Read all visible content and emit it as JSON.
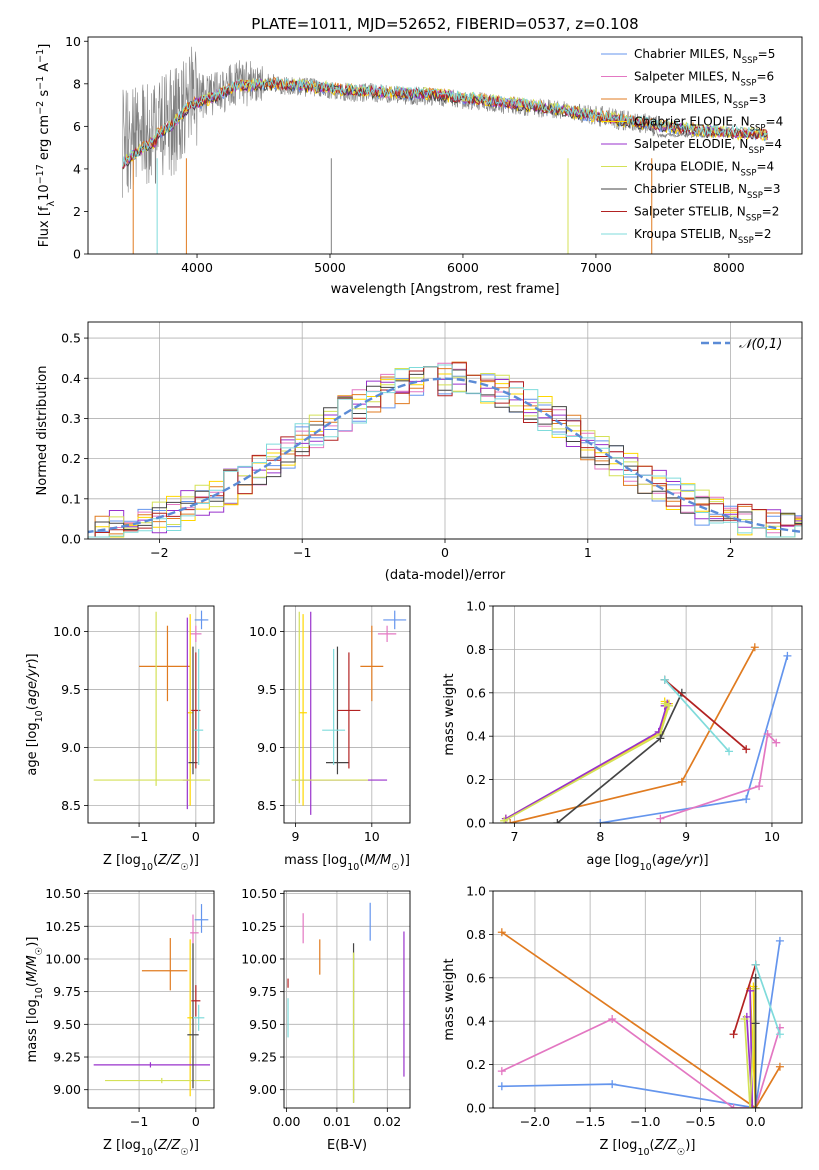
{
  "figure_title": "PLATE=1011, MJD=52652, FIBERID=0537, z=0.108",
  "series_colors": {
    "Chabrier MILES": "#6495ed",
    "Salpeter MILES": "#e377c2",
    "Kroupa MILES": "#e07b20",
    "Chabrier ELODIE": "#ffd700",
    "Salpeter ELODIE": "#9932cc",
    "Kroupa ELODIE": "#d4e157",
    "Chabrier STELIB": "#444444",
    "Salpeter STELIB": "#b22222",
    "Kroupa STELIB": "#7fdbdb"
  },
  "chart_data": [
    {
      "id": "spectrum",
      "type": "line",
      "title": "PLATE=1011, MJD=52652, FIBERID=0537, z=0.108",
      "xlabel": "wavelength [Angstrom, rest frame]",
      "ylabel": "Flux [f_λ 10^-17 erg cm^-2 s^-1 A^-1]",
      "xlim": [
        3180,
        8550
      ],
      "ylim": [
        0,
        10.2
      ],
      "xticks": [
        4000,
        5000,
        6000,
        7000,
        8000
      ],
      "yticks": [
        0,
        2,
        4,
        6,
        8,
        10
      ],
      "legend_position": "top-right",
      "legend": [
        "Chabrier MILES, N_SSP=5",
        "Salpeter MILES, N_SSP=6",
        "Kroupa MILES, N_SSP=3",
        "Chabrier ELODIE, N_SSP=4",
        "Salpeter ELODIE, N_SSP=4",
        "Kroupa ELODIE, N_SSP=4",
        "Chabrier STELIB, N_SSP=3",
        "Salpeter STELIB, N_SSP=2",
        "Kroupa STELIB, N_SSP=2"
      ],
      "data_series": {
        "name": "data",
        "color": "#808080",
        "x": [
          3450,
          3550,
          3650,
          3750,
          3850,
          3950,
          4050,
          4150,
          4300,
          4500,
          4700,
          4900,
          5100,
          5300,
          5500,
          5700,
          5900,
          6100,
          6300,
          6500,
          6700,
          6900,
          7100,
          7300,
          7450
        ],
        "y": [
          5.2,
          5.3,
          5.6,
          6.0,
          6.2,
          7.2,
          7.5,
          7.6,
          8.0,
          8.1,
          7.9,
          7.8,
          7.6,
          7.6,
          7.5,
          7.4,
          7.3,
          7.2,
          7.0,
          6.9,
          6.8,
          6.6,
          6.4,
          6.2,
          6.0
        ]
      },
      "model_x": [
        3450,
        3600,
        3800,
        3950,
        4100,
        4300,
        4600,
        5000,
        5400,
        5800,
        6200,
        6600,
        7000,
        7400,
        7800,
        8300
      ],
      "model_y": [
        4.6,
        5.3,
        6.0,
        7.0,
        7.3,
        7.9,
        8.0,
        7.8,
        7.6,
        7.5,
        7.2,
        6.9,
        6.5,
        6.1,
        5.8,
        5.6
      ]
    },
    {
      "id": "residuals",
      "type": "histogram",
      "xlabel": "(data-model)/error",
      "ylabel": "Normed distribution",
      "xlim": [
        -2.5,
        2.5
      ],
      "ylim": [
        0,
        0.54
      ],
      "xticks": [
        -2,
        -1,
        0,
        1,
        2
      ],
      "yticks": [
        0.0,
        0.1,
        0.2,
        0.3,
        0.4,
        0.5
      ],
      "legend_position": "top-right",
      "legend": [
        "𝒩(0,1)"
      ],
      "reference_curve": {
        "name": "𝒩(0,1)",
        "mean": 0,
        "sigma": 1,
        "color": "#5b8bd6",
        "style": "dashed"
      }
    },
    {
      "id": "age-Z",
      "type": "errorbar",
      "xlabel": "Z [log10(Z/Z☉)]",
      "ylabel": "age [log10(age/yr)]",
      "xlim": [
        -1.9,
        0.32
      ],
      "ylim": [
        8.35,
        10.22
      ],
      "xticks": [
        -1,
        0
      ],
      "yticks": [
        8.5,
        9.0,
        9.5,
        10.0
      ],
      "points": [
        {
          "name": "Chabrier MILES",
          "x": 0.1,
          "y": 10.1,
          "xerr": [
            0.12,
            0.12
          ],
          "yerr": [
            0.08,
            0.08
          ]
        },
        {
          "name": "Salpeter MILES",
          "x": 0.0,
          "y": 9.98,
          "xerr": [
            0.1,
            0.1
          ],
          "yerr": [
            0.07,
            0.07
          ]
        },
        {
          "name": "Kroupa MILES",
          "x": -0.5,
          "y": 9.7,
          "xerr": [
            0.5,
            0.4
          ],
          "yerr": [
            0.3,
            0.35
          ]
        },
        {
          "name": "Chabrier ELODIE",
          "x": -0.1,
          "y": 9.3,
          "xerr": [
            0.05,
            0.05
          ],
          "yerr": [
            0.8,
            0.85
          ]
        },
        {
          "name": "Salpeter ELODIE",
          "x": -0.15,
          "y": 8.72,
          "xerr": [
            0.08,
            0.05
          ],
          "yerr": [
            0.25,
            1.4
          ]
        },
        {
          "name": "Kroupa ELODIE",
          "x": -0.7,
          "y": 8.72,
          "xerr": [
            1.1,
            0.95
          ],
          "yerr": [
            0.05,
            1.45
          ]
        },
        {
          "name": "Chabrier STELIB",
          "x": -0.05,
          "y": 8.87,
          "xerr": [
            0.08,
            0.08
          ],
          "yerr": [
            0.1,
            1.0
          ]
        },
        {
          "name": "Salpeter STELIB",
          "x": 0.0,
          "y": 9.32,
          "xerr": [
            0.08,
            0.08
          ],
          "yerr": [
            0.5,
            0.5
          ]
        },
        {
          "name": "Kroupa STELIB",
          "x": 0.05,
          "y": 9.15,
          "xerr": [
            0.08,
            0.08
          ],
          "yerr": [
            0.3,
            0.7
          ]
        }
      ]
    },
    {
      "id": "age-mass",
      "type": "errorbar",
      "xlabel": "mass [log10(M/M☉)]",
      "ylabel": "",
      "xlim": [
        8.85,
        10.5
      ],
      "ylim": [
        8.35,
        10.22
      ],
      "xticks": [
        9,
        10
      ],
      "yticks": [
        8.5,
        9.0,
        9.5,
        10.0
      ],
      "points": [
        {
          "name": "Chabrier MILES",
          "x": 10.3,
          "y": 10.1,
          "xerr": [
            0.15,
            0.15
          ],
          "yerr": [
            0.08,
            0.08
          ]
        },
        {
          "name": "Salpeter MILES",
          "x": 10.2,
          "y": 9.98,
          "xerr": [
            0.12,
            0.12
          ],
          "yerr": [
            0.07,
            0.07
          ]
        },
        {
          "name": "Kroupa MILES",
          "x": 10.0,
          "y": 9.7,
          "xerr": [
            0.15,
            0.15
          ],
          "yerr": [
            0.3,
            0.35
          ]
        },
        {
          "name": "Chabrier ELODIE",
          "x": 9.1,
          "y": 9.3,
          "xerr": [
            0.05,
            0.05
          ],
          "yerr": [
            0.8,
            0.85
          ]
        },
        {
          "name": "Salpeter ELODIE",
          "x": 9.2,
          "y": 8.72,
          "xerr": [
            0.2,
            1.0
          ],
          "yerr": [
            0.3,
            1.45
          ]
        },
        {
          "name": "Kroupa ELODIE",
          "x": 9.05,
          "y": 8.72,
          "xerr": [
            0.1,
            0.9
          ],
          "yerr": [
            0.2,
            1.45
          ]
        },
        {
          "name": "Chabrier STELIB",
          "x": 9.55,
          "y": 8.87,
          "xerr": [
            0.15,
            0.15
          ],
          "yerr": [
            0.1,
            1.0
          ]
        },
        {
          "name": "Salpeter STELIB",
          "x": 9.7,
          "y": 9.32,
          "xerr": [
            0.15,
            0.15
          ],
          "yerr": [
            0.5,
            0.5
          ]
        },
        {
          "name": "Kroupa STELIB",
          "x": 9.5,
          "y": 9.15,
          "xerr": [
            0.15,
            0.15
          ],
          "yerr": [
            0.3,
            0.7
          ]
        }
      ]
    },
    {
      "id": "weight-age",
      "type": "line",
      "xlabel": "age [log10(age/yr)]",
      "ylabel": "mass weight",
      "xlim": [
        6.75,
        10.35
      ],
      "ylim": [
        0,
        1.0
      ],
      "xticks": [
        7,
        8,
        9,
        10
      ],
      "yticks": [
        0.0,
        0.2,
        0.4,
        0.6,
        0.8,
        1.0
      ],
      "series": [
        {
          "name": "Chabrier MILES",
          "x": [
            8.0,
            9.7,
            10.18
          ],
          "y": [
            0.0,
            0.11,
            0.77
          ]
        },
        {
          "name": "Salpeter MILES",
          "x": [
            8.7,
            9.85,
            9.95,
            10.05
          ],
          "y": [
            0.02,
            0.17,
            0.41,
            0.37
          ]
        },
        {
          "name": "Kroupa MILES",
          "x": [
            6.95,
            8.95,
            9.8
          ],
          "y": [
            0.0,
            0.19,
            0.81
          ]
        },
        {
          "name": "Chabrier ELODIE",
          "x": [
            6.9,
            8.7,
            8.8,
            8.75
          ],
          "y": [
            0.02,
            0.42,
            0.55,
            0.56
          ]
        },
        {
          "name": "Salpeter ELODIE",
          "x": [
            6.9,
            8.68,
            8.78,
            8.75
          ],
          "y": [
            0.02,
            0.42,
            0.55,
            0.54
          ]
        },
        {
          "name": "Kroupa ELODIE",
          "x": [
            6.88,
            8.7,
            8.8,
            8.75
          ],
          "y": [
            0.01,
            0.41,
            0.54,
            0.55
          ]
        },
        {
          "name": "Chabrier STELIB",
          "x": [
            7.5,
            8.7,
            8.95
          ],
          "y": [
            0.0,
            0.39,
            0.6
          ]
        },
        {
          "name": "Salpeter STELIB",
          "x": [
            8.75,
            9.7
          ],
          "y": [
            0.66,
            0.34
          ]
        },
        {
          "name": "Kroupa STELIB",
          "x": [
            8.75,
            9.5
          ],
          "y": [
            0.66,
            0.33
          ]
        }
      ]
    },
    {
      "id": "mass-Z",
      "type": "errorbar",
      "xlabel": "Z [log10(Z/Z☉)]",
      "ylabel": "mass [log10(M/M☉)]",
      "xlim": [
        -1.9,
        0.32
      ],
      "ylim": [
        8.86,
        10.52
      ],
      "xticks": [
        -1,
        0
      ],
      "yticks": [
        9.0,
        9.25,
        9.5,
        9.75,
        10.0,
        10.25,
        10.5
      ],
      "points": [
        {
          "name": "Chabrier MILES",
          "x": 0.1,
          "y": 10.3,
          "xerr": [
            0.12,
            0.12
          ],
          "yerr": [
            0.1,
            0.12
          ]
        },
        {
          "name": "Salpeter MILES",
          "x": -0.05,
          "y": 10.2,
          "xerr": [
            0.05,
            0.1
          ],
          "yerr": [
            0.08,
            0.14
          ]
        },
        {
          "name": "Kroupa MILES",
          "x": -0.45,
          "y": 9.91,
          "xerr": [
            0.5,
            0.3
          ],
          "yerr": [
            0.15,
            0.25
          ]
        },
        {
          "name": "Chabrier ELODIE",
          "x": -0.1,
          "y": 9.55,
          "xerr": [
            0.05,
            0.05
          ],
          "yerr": [
            0.6,
            0.6
          ]
        },
        {
          "name": "Salpeter ELODIE",
          "x": -0.8,
          "y": 9.19,
          "xerr": [
            1.0,
            1.05
          ],
          "yerr": [
            0.02,
            0.02
          ]
        },
        {
          "name": "Kroupa ELODIE",
          "x": -0.6,
          "y": 9.07,
          "xerr": [
            1.0,
            0.85
          ],
          "yerr": [
            0.02,
            0.02
          ]
        },
        {
          "name": "Chabrier STELIB",
          "x": -0.05,
          "y": 9.42,
          "xerr": [
            0.1,
            0.1
          ],
          "yerr": [
            0.41,
            0.7
          ]
        },
        {
          "name": "Salpeter STELIB",
          "x": 0.0,
          "y": 9.68,
          "xerr": [
            0.08,
            0.08
          ],
          "yerr": [
            0.12,
            0.12
          ]
        },
        {
          "name": "Kroupa STELIB",
          "x": 0.05,
          "y": 9.55,
          "xerr": [
            0.1,
            0.1
          ],
          "yerr": [
            0.1,
            0.1
          ]
        }
      ]
    },
    {
      "id": "mass-EBV",
      "type": "errorbar",
      "xlabel": "E(B-V)",
      "ylabel": "",
      "xlim": [
        -0.0005,
        0.0245
      ],
      "ylim": [
        8.86,
        10.52
      ],
      "xticks": [
        0.0,
        0.01,
        0.02
      ],
      "yticks": [
        9.0,
        9.25,
        9.5,
        9.75,
        10.0,
        10.25,
        10.5
      ],
      "points": [
        {
          "name": "Chabrier MILES",
          "x": 0.0166,
          "y": 10.27,
          "yerr": [
            0.13,
            0.16
          ]
        },
        {
          "name": "Salpeter MILES",
          "x": 0.0033,
          "y": 10.22,
          "yerr": [
            0.1,
            0.13
          ]
        },
        {
          "name": "Kroupa MILES",
          "x": 0.0066,
          "y": 10.0,
          "yerr": [
            0.12,
            0.15
          ]
        },
        {
          "name": "Salpeter STELIB",
          "x": 0.0003,
          "y": 9.78,
          "yerr": [
            0.0,
            0.07
          ]
        },
        {
          "name": "Kroupa STELIB",
          "x": 0.0003,
          "y": 9.55,
          "yerr": [
            0.15,
            0.15
          ]
        },
        {
          "name": "Chabrier STELIB",
          "x": 0.0133,
          "y": 9.5,
          "yerr": [
            0.6,
            0.62
          ]
        },
        {
          "name": "Kroupa ELODIE",
          "x": 0.0133,
          "y": 9.45,
          "yerr": [
            0.55,
            0.6
          ]
        },
        {
          "name": "Salpeter ELODIE",
          "x": 0.0233,
          "y": 9.65,
          "yerr": [
            0.55,
            0.56
          ]
        }
      ]
    },
    {
      "id": "weight-Z",
      "type": "line",
      "xlabel": "Z [log10(Z/Z☉)]",
      "ylabel": "mass weight",
      "xlim": [
        -2.38,
        0.42
      ],
      "ylim": [
        0,
        1.0
      ],
      "xticks": [
        -2.0,
        -1.5,
        -1.0,
        -0.5,
        0.0
      ],
      "yticks": [
        0.0,
        0.2,
        0.4,
        0.6,
        0.8,
        1.0
      ],
      "series": [
        {
          "name": "Chabrier MILES",
          "x": [
            -2.3,
            -1.3,
            0.0,
            0.22
          ],
          "y": [
            0.1,
            0.11,
            0.0,
            0.77
          ]
        },
        {
          "name": "Salpeter MILES",
          "x": [
            -2.3,
            -1.3,
            -0.2,
            0.0,
            0.22
          ],
          "y": [
            0.17,
            0.41,
            0.0,
            0.0,
            0.37
          ]
        },
        {
          "name": "Kroupa MILES",
          "x": [
            -2.3,
            0.0,
            0.22
          ],
          "y": [
            0.81,
            0.0,
            0.19
          ]
        },
        {
          "name": "Chabrier ELODIE",
          "x": [
            -0.05,
            0.0,
            -0.02
          ],
          "y": [
            0.55,
            0.0,
            0.56
          ]
        },
        {
          "name": "Salpeter ELODIE",
          "x": [
            -0.08,
            -0.03,
            -0.05
          ],
          "y": [
            0.42,
            0.0,
            0.54
          ]
        },
        {
          "name": "Kroupa ELODIE",
          "x": [
            -0.1,
            -0.05,
            0.0
          ],
          "y": [
            0.41,
            0.0,
            0.55
          ]
        },
        {
          "name": "Chabrier STELIB",
          "x": [
            0.0,
            0.0,
            0.0
          ],
          "y": [
            0.0,
            0.39,
            0.6
          ]
        },
        {
          "name": "Salpeter STELIB",
          "x": [
            -0.2,
            0.0
          ],
          "y": [
            0.34,
            0.66
          ]
        },
        {
          "name": "Kroupa STELIB",
          "x": [
            0.0,
            0.22
          ],
          "y": [
            0.66,
            0.34
          ]
        }
      ]
    }
  ]
}
